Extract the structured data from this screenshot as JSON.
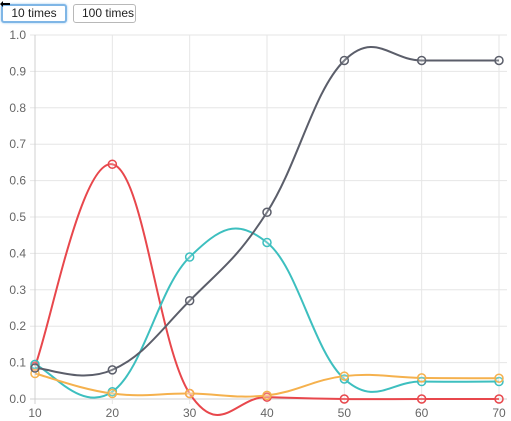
{
  "toolbar": {
    "buttons": [
      {
        "label": "10 times",
        "active": true
      },
      {
        "label": "100 times",
        "active": false
      }
    ]
  },
  "chart_data": {
    "type": "line",
    "title": "",
    "xlabel": "",
    "ylabel": "",
    "x": [
      10,
      20,
      30,
      40,
      50,
      60,
      70
    ],
    "xlim": [
      10,
      70
    ],
    "ylim": [
      0,
      1.0
    ],
    "x_ticks": [
      "10",
      "20",
      "30",
      "40",
      "50",
      "60",
      "70"
    ],
    "y_ticks": [
      "0.0",
      "0.1",
      "0.2",
      "0.3",
      "0.4",
      "0.5",
      "0.6",
      "0.7",
      "0.8",
      "0.9",
      "1.0"
    ],
    "grid": true,
    "legend": "none",
    "series": [
      {
        "color": "#e8474c",
        "values": [
          0.09,
          0.645,
          0.015,
          0.005,
          0.0,
          0.0,
          0.0
        ]
      },
      {
        "color": "#3dbfbf",
        "values": [
          0.095,
          0.02,
          0.39,
          0.43,
          0.055,
          0.048,
          0.048
        ]
      },
      {
        "color": "#f5b14d",
        "values": [
          0.07,
          0.015,
          0.015,
          0.01,
          0.063,
          0.058,
          0.057
        ]
      },
      {
        "color": "#5b5e6a",
        "values": [
          0.085,
          0.08,
          0.27,
          0.513,
          0.93,
          0.93,
          0.93
        ]
      }
    ]
  }
}
